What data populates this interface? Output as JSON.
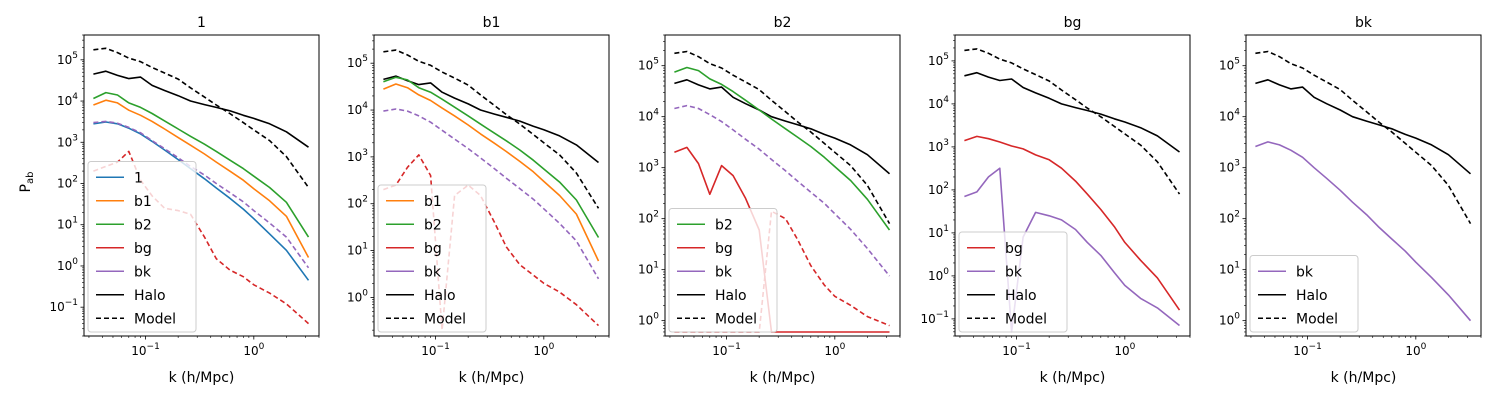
{
  "figure": {
    "ylabel": "P_ab"
  },
  "colors": {
    "1": "#1f77b4",
    "b1": "#ff7f0e",
    "b2": "#2ca02c",
    "bg": "#d62728",
    "bk": "#9467bd",
    "Halo": "#000000",
    "Model": "#000000"
  },
  "chart_data": [
    {
      "type": "line",
      "title": "1",
      "xlabel": "k (h/Mpc)",
      "ylabel": "P_ab",
      "xscale": "log",
      "yscale": "log",
      "xlim": [
        0.027,
        4.0
      ],
      "ylim": [
        0.02,
        400000
      ],
      "yticks": [
        0.1,
        1,
        10,
        100,
        1000,
        10000,
        100000
      ],
      "xticks": [
        0.1,
        1
      ],
      "legend": {
        "placement": "lower-left",
        "entries": [
          "1",
          "b1",
          "b2",
          "bg",
          "bk",
          "Halo",
          "Model"
        ]
      },
      "x": [
        0.033,
        0.043,
        0.055,
        0.07,
        0.09,
        0.115,
        0.15,
        0.2,
        0.26,
        0.35,
        0.45,
        0.6,
        0.8,
        1.0,
        1.4,
        2.0,
        3.2
      ],
      "series": [
        {
          "name": "Halo",
          "style": "solid",
          "values": [
            45000,
            53000,
            42000,
            35000,
            38000,
            24000,
            18000,
            13500,
            10000,
            8200,
            7000,
            5800,
            4500,
            3800,
            2800,
            1800,
            760
          ]
        },
        {
          "name": "Model",
          "style": "dashed",
          "values": [
            175000,
            190000,
            150000,
            110000,
            90000,
            65000,
            48000,
            34000,
            21000,
            12500,
            8000,
            5000,
            3000,
            2000,
            1100,
            450,
            80
          ]
        },
        {
          "name": "b2",
          "style": "solid",
          "values": [
            11500,
            16000,
            14000,
            9000,
            7000,
            5000,
            3300,
            2100,
            1400,
            900,
            600,
            370,
            230,
            150,
            80,
            35,
            5
          ]
        },
        {
          "name": "b1",
          "style": "solid",
          "values": [
            8000,
            10500,
            9000,
            6000,
            4500,
            3200,
            2100,
            1300,
            850,
            520,
            330,
            200,
            120,
            75,
            38,
            16,
            1.6
          ]
        },
        {
          "name": "1",
          "style": "solid",
          "values": [
            2800,
            3100,
            2800,
            2200,
            1600,
            1050,
            650,
            380,
            230,
            130,
            78,
            44,
            24,
            14,
            6,
            2.4,
            0.45
          ]
        },
        {
          "name": "bk",
          "style": "dashed",
          "values": [
            3000,
            3200,
            2900,
            2300,
            1700,
            1100,
            700,
            420,
            260,
            160,
            100,
            60,
            36,
            22,
            11,
            5,
            0.9
          ]
        },
        {
          "name": "bg",
          "style": "dashed",
          "values": [
            200,
            260,
            330,
            600,
            120,
            50,
            25,
            22,
            18,
            5,
            1.5,
            0.8,
            0.55,
            0.35,
            0.22,
            0.12,
            0.04
          ]
        }
      ]
    },
    {
      "type": "line",
      "title": "b1",
      "xlabel": "k (h/Mpc)",
      "ylabel": "",
      "xscale": "log",
      "yscale": "log",
      "xlim": [
        0.027,
        4.0
      ],
      "ylim": [
        0.15,
        400000
      ],
      "yticks": [
        1,
        10,
        100,
        1000,
        10000,
        100000
      ],
      "xticks": [
        0.1,
        1
      ],
      "legend": {
        "placement": "lower-left",
        "entries": [
          "b1",
          "b2",
          "bg",
          "bk",
          "Halo",
          "Model"
        ]
      },
      "x": [
        0.033,
        0.043,
        0.055,
        0.07,
        0.09,
        0.115,
        0.15,
        0.2,
        0.26,
        0.35,
        0.45,
        0.6,
        0.8,
        1.0,
        1.4,
        2.0,
        3.2
      ],
      "series": [
        {
          "name": "Halo",
          "style": "solid",
          "values": [
            45000,
            53000,
            42000,
            35000,
            38000,
            24000,
            18000,
            13500,
            10000,
            8200,
            7000,
            5800,
            4500,
            3800,
            2800,
            1800,
            760
          ]
        },
        {
          "name": "Model",
          "style": "dashed",
          "values": [
            175000,
            190000,
            150000,
            110000,
            90000,
            65000,
            48000,
            34000,
            21000,
            12500,
            8000,
            5000,
            3000,
            2000,
            1100,
            450,
            80
          ]
        },
        {
          "name": "b2",
          "style": "solid",
          "values": [
            40000,
            50000,
            44000,
            30000,
            24000,
            17000,
            11500,
            7500,
            5000,
            3200,
            2200,
            1400,
            850,
            550,
            290,
            120,
            19
          ]
        },
        {
          "name": "b1",
          "style": "solid",
          "values": [
            28000,
            36000,
            30000,
            21000,
            16000,
            11000,
            7500,
            4800,
            3100,
            1950,
            1300,
            800,
            480,
            300,
            150,
            60,
            6
          ]
        },
        {
          "name": "bk",
          "style": "dashed",
          "values": [
            9500,
            10500,
            9500,
            7500,
            5500,
            3700,
            2400,
            1500,
            950,
            560,
            350,
            210,
            125,
            78,
            38,
            16,
            2.5
          ]
        },
        {
          "name": "bg",
          "style": "dashed",
          "values": [
            200,
            250,
            600,
            1100,
            400,
            0.2,
            150,
            250,
            150,
            40,
            12,
            5,
            3,
            2,
            1.3,
            0.7,
            0.25
          ]
        }
      ]
    },
    {
      "type": "line",
      "title": "b2",
      "xlabel": "k (h/Mpc)",
      "ylabel": "",
      "xscale": "log",
      "yscale": "log",
      "xlim": [
        0.027,
        4.0
      ],
      "ylim": [
        0.5,
        400000
      ],
      "yticks": [
        1,
        10,
        100,
        1000,
        10000,
        100000
      ],
      "xticks": [
        0.1,
        1
      ],
      "legend": {
        "placement": "lower-left",
        "entries": [
          "b2",
          "bg",
          "bk",
          "Halo",
          "Model"
        ]
      },
      "x": [
        0.033,
        0.043,
        0.055,
        0.07,
        0.09,
        0.115,
        0.15,
        0.2,
        0.26,
        0.35,
        0.45,
        0.6,
        0.8,
        1.0,
        1.4,
        2.0,
        3.2
      ],
      "series": [
        {
          "name": "Halo",
          "style": "solid",
          "values": [
            45000,
            53000,
            42000,
            35000,
            38000,
            24000,
            18000,
            13500,
            10000,
            8200,
            7000,
            5800,
            4500,
            3800,
            2800,
            1800,
            760
          ]
        },
        {
          "name": "Model",
          "style": "dashed",
          "values": [
            175000,
            190000,
            150000,
            110000,
            90000,
            65000,
            48000,
            34000,
            21000,
            12500,
            8000,
            5000,
            3000,
            2000,
            1100,
            450,
            80
          ]
        },
        {
          "name": "b2",
          "style": "solid",
          "values": [
            75000,
            92000,
            80000,
            55000,
            43000,
            31000,
            21000,
            13500,
            9000,
            5800,
            4000,
            2600,
            1600,
            1050,
            560,
            240,
            60
          ]
        },
        {
          "name": "bk",
          "style": "dashed",
          "values": [
            14500,
            16500,
            14500,
            11000,
            8000,
            5500,
            3600,
            2300,
            1450,
            870,
            550,
            330,
            200,
            125,
            62,
            26,
            7.5
          ]
        },
        {
          "name": "bg",
          "style": "solid",
          "values": [
            2000,
            2500,
            1200,
            300,
            1100,
            700,
            250,
            60,
            0.6,
            0.6,
            0.6,
            0.6,
            0.6,
            0.6,
            0.6,
            0.6,
            0.6
          ]
        },
        {
          "name": "bg",
          "style": "dashed",
          "values": [
            0.6,
            0.6,
            0.6,
            0.6,
            0.6,
            0.6,
            0.6,
            0.6,
            140,
            100,
            40,
            12,
            5,
            3,
            2,
            1.2,
            0.8
          ]
        }
      ]
    },
    {
      "type": "line",
      "title": "bg",
      "xlabel": "k (h/Mpc)",
      "ylabel": "",
      "xscale": "log",
      "yscale": "log",
      "xlim": [
        0.027,
        4.0
      ],
      "ylim": [
        0.04,
        400000
      ],
      "yticks": [
        0.1,
        1,
        10,
        100,
        1000,
        10000,
        100000
      ],
      "xticks": [
        0.1,
        1
      ],
      "legend": {
        "placement": "lower-left",
        "entries": [
          "bg",
          "bk",
          "Halo",
          "Model"
        ]
      },
      "x": [
        0.033,
        0.043,
        0.055,
        0.07,
        0.09,
        0.115,
        0.15,
        0.2,
        0.26,
        0.35,
        0.45,
        0.6,
        0.8,
        1.0,
        1.4,
        2.0,
        3.2
      ],
      "series": [
        {
          "name": "Halo",
          "style": "solid",
          "values": [
            45000,
            53000,
            42000,
            35000,
            38000,
            24000,
            18000,
            13500,
            10000,
            8200,
            7000,
            5800,
            4500,
            3800,
            2800,
            1800,
            760
          ]
        },
        {
          "name": "Model",
          "style": "dashed",
          "values": [
            175000,
            190000,
            150000,
            110000,
            90000,
            65000,
            48000,
            34000,
            21000,
            12500,
            8000,
            5000,
            3000,
            2000,
            1100,
            450,
            80
          ]
        },
        {
          "name": "bg",
          "style": "solid",
          "values": [
            1400,
            1750,
            1550,
            1300,
            1050,
            900,
            650,
            500,
            320,
            160,
            80,
            35,
            14,
            6,
            2.3,
            0.9,
            0.16
          ]
        },
        {
          "name": "bk",
          "style": "solid",
          "values": [
            70,
            90,
            200,
            320,
            0.05,
            8,
            30,
            25,
            20,
            12,
            6,
            3,
            1.2,
            0.6,
            0.3,
            0.18,
            0.07
          ]
        }
      ]
    },
    {
      "type": "line",
      "title": "bk",
      "xlabel": "k (h/Mpc)",
      "ylabel": "",
      "xscale": "log",
      "yscale": "log",
      "xlim": [
        0.027,
        4.0
      ],
      "ylim": [
        0.5,
        400000
      ],
      "yticks": [
        1,
        10,
        100,
        1000,
        10000,
        100000
      ],
      "xticks": [
        0.1,
        1
      ],
      "legend": {
        "placement": "lower-left",
        "entries": [
          "bk",
          "Halo",
          "Model"
        ]
      },
      "x": [
        0.033,
        0.043,
        0.055,
        0.07,
        0.09,
        0.115,
        0.15,
        0.2,
        0.26,
        0.35,
        0.45,
        0.6,
        0.8,
        1.0,
        1.4,
        2.0,
        3.2
      ],
      "series": [
        {
          "name": "Halo",
          "style": "solid",
          "values": [
            45000,
            53000,
            42000,
            35000,
            38000,
            24000,
            18000,
            13500,
            10000,
            8200,
            7000,
            5800,
            4500,
            3800,
            2800,
            1800,
            760
          ]
        },
        {
          "name": "Model",
          "style": "dashed",
          "values": [
            175000,
            190000,
            150000,
            110000,
            90000,
            65000,
            48000,
            34000,
            21000,
            12500,
            8000,
            5000,
            3000,
            2000,
            1100,
            450,
            80
          ]
        },
        {
          "name": "bk",
          "style": "solid",
          "values": [
            2600,
            3200,
            2800,
            2200,
            1600,
            1000,
            620,
            360,
            210,
            120,
            70,
            40,
            23,
            14,
            7,
            3.2,
            1
          ]
        }
      ]
    }
  ]
}
